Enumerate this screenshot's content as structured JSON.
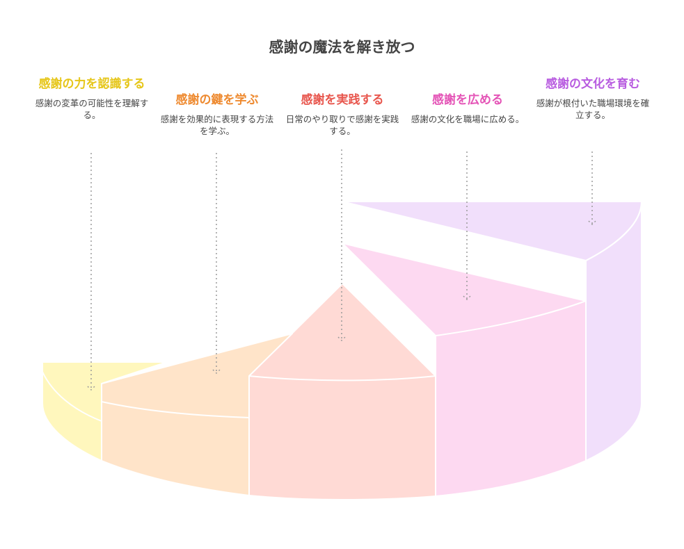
{
  "title": "感謝の魔法を解き放つ",
  "steps": [
    {
      "title": "感謝の力を認識する",
      "desc": "感謝の変革の可能性を理解する。",
      "color": "#e6c619",
      "fill": "#fff7bd"
    },
    {
      "title": "感謝の鍵を学ぶ",
      "desc": "感謝を効果的に表現する方法を学ぶ。",
      "color": "#ee8a30",
      "fill": "#ffe4c9"
    },
    {
      "title": "感謝を実践する",
      "desc": "日常のやり取りで感謝を実践する。",
      "color": "#e8574e",
      "fill": "#ffdad5"
    },
    {
      "title": "感謝を広める",
      "desc": "感謝の文化を職場に広める。",
      "color": "#e453b6",
      "fill": "#fdd9f1"
    },
    {
      "title": "感謝の文化を育む",
      "desc": "感謝が根付いた職場環境を確立する。",
      "color": "#b85ce0",
      "fill": "#f1dffb"
    }
  ]
}
